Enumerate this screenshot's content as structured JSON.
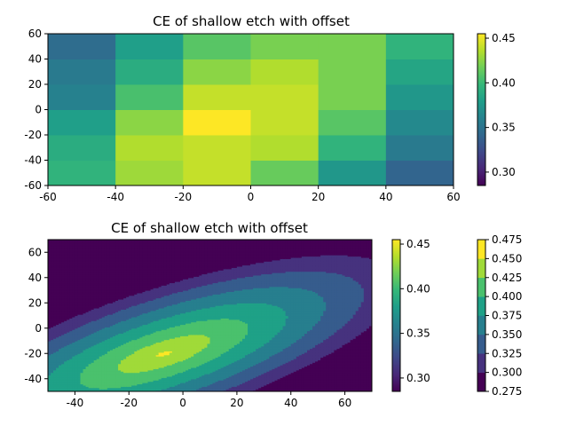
{
  "chart_data": [
    {
      "type": "heatmap",
      "title": "CE of shallow etch with offset",
      "xlabel": "",
      "ylabel": "",
      "x_edges": [
        -60,
        -40,
        -20,
        0,
        20,
        40,
        60
      ],
      "y_edges": [
        -60,
        -40,
        -20,
        0,
        20,
        40,
        60
      ],
      "xlim": [
        -60,
        60
      ],
      "ylim": [
        -60,
        60
      ],
      "x_ticks": [
        -60,
        -40,
        -20,
        0,
        20,
        40,
        60
      ],
      "y_ticks": [
        -60,
        -40,
        -20,
        0,
        20,
        40,
        60
      ],
      "values_rows_bottom_to_top": [
        [
          0.395,
          0.43,
          0.44,
          0.415,
          0.375,
          0.34
        ],
        [
          0.39,
          0.435,
          0.44,
          0.435,
          0.395,
          0.355
        ],
        [
          0.38,
          0.425,
          0.455,
          0.44,
          0.41,
          0.365
        ],
        [
          0.36,
          0.405,
          0.44,
          0.44,
          0.42,
          0.375
        ],
        [
          0.355,
          0.39,
          0.425,
          0.435,
          0.42,
          0.385
        ],
        [
          0.345,
          0.38,
          0.41,
          0.42,
          0.42,
          0.395
        ]
      ],
      "colorbar": {
        "vmin": 0.285,
        "vmax": 0.455,
        "ticks": [
          0.3,
          0.35,
          0.4,
          0.45
        ]
      }
    },
    {
      "type": "contour",
      "title": "CE of shallow etch with offset",
      "xlabel": "",
      "ylabel": "",
      "xlim": [
        -50,
        70
      ],
      "ylim": [
        -50,
        70
      ],
      "x_ticks": [
        -40,
        -20,
        0,
        20,
        40,
        60
      ],
      "y_ticks": [
        -40,
        -20,
        0,
        20,
        40,
        60
      ],
      "levels": [
        0.275,
        0.3,
        0.325,
        0.35,
        0.375,
        0.4,
        0.425,
        0.45,
        0.475
      ],
      "level_colors": [
        "#440154",
        "#46327e",
        "#365c8d",
        "#277f8e",
        "#1fa187",
        "#4ac16d",
        "#a0da39",
        "#fde725"
      ],
      "field": {
        "peak_center": [
          -7,
          -20
        ],
        "peak_value": 0.455,
        "axis_angle_deg": 40,
        "along_length": 155,
        "across_length": 62
      },
      "colorbar_inner": {
        "vmin": 0.285,
        "vmax": 0.455,
        "ticks": [
          0.3,
          0.35,
          0.4,
          0.45
        ]
      },
      "colorbar_outer": {
        "ticks": [
          0.275,
          0.3,
          0.325,
          0.35,
          0.375,
          0.4,
          0.425,
          0.45,
          0.475
        ]
      }
    }
  ]
}
